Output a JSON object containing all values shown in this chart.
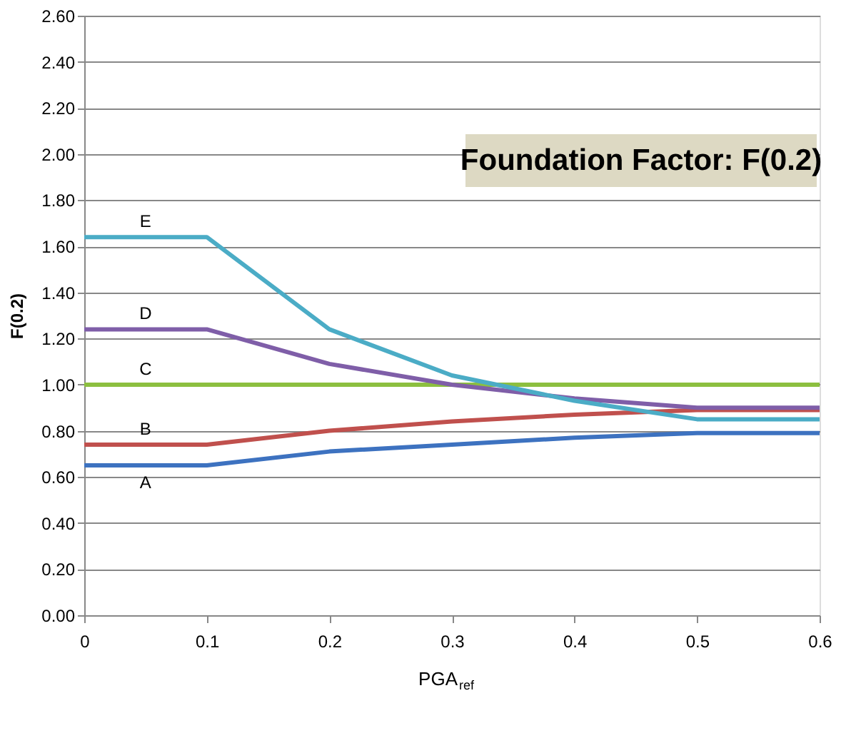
{
  "chart_data": {
    "type": "line",
    "title": "Foundation Factor: F(0.2)",
    "xlabel": "PGA$_{ref}$",
    "ylabel": "F(0.2)",
    "x": [
      0,
      0.1,
      0.2,
      0.3,
      0.4,
      0.5,
      0.6
    ],
    "series": [
      {
        "name": "A",
        "color": "#3d72c0",
        "values": [
          0.65,
          0.65,
          0.71,
          0.74,
          0.77,
          0.79,
          0.79
        ]
      },
      {
        "name": "B",
        "color": "#c0504d",
        "values": [
          0.74,
          0.74,
          0.8,
          0.84,
          0.87,
          0.89,
          0.89
        ]
      },
      {
        "name": "C",
        "color": "#8cbf3f",
        "values": [
          1.0,
          1.0,
          1.0,
          1.0,
          1.0,
          1.0,
          1.0
        ]
      },
      {
        "name": "D",
        "color": "#7f5ea8",
        "values": [
          1.24,
          1.24,
          1.09,
          1.0,
          0.94,
          0.9,
          0.9
        ]
      },
      {
        "name": "E",
        "color": "#4bacc6",
        "values": [
          1.64,
          1.64,
          1.24,
          1.04,
          0.93,
          0.85,
          0.85
        ]
      }
    ],
    "xlim": [
      0,
      0.6
    ],
    "xticks": [
      0,
      0.1,
      0.2,
      0.3,
      0.4,
      0.5,
      0.6
    ],
    "ylim": [
      0,
      2.6
    ],
    "yticks": [
      {
        "value": 0,
        "label": "0.00"
      },
      {
        "value": 0.2,
        "label": "0.20"
      },
      {
        "value": 0.4,
        "label": "0.40"
      },
      {
        "value": 0.6,
        "label": "0.60"
      },
      {
        "value": 0.8,
        "label": "0.80"
      },
      {
        "value": 1.0,
        "label": "1.00"
      },
      {
        "value": 1.2,
        "label": "1.20"
      },
      {
        "value": 1.4,
        "label": "1.40"
      },
      {
        "value": 1.6,
        "label": "1.60"
      },
      {
        "value": 1.8,
        "label": "1.80"
      },
      {
        "value": 2.0,
        "label": "2.00"
      },
      {
        "value": 2.2,
        "label": "2.20"
      },
      {
        "value": 2.4,
        "label": "2.40"
      },
      {
        "value": 2.6,
        "label": "2.60"
      }
    ],
    "grid": "y",
    "marker": "none",
    "line_style": "solid"
  }
}
